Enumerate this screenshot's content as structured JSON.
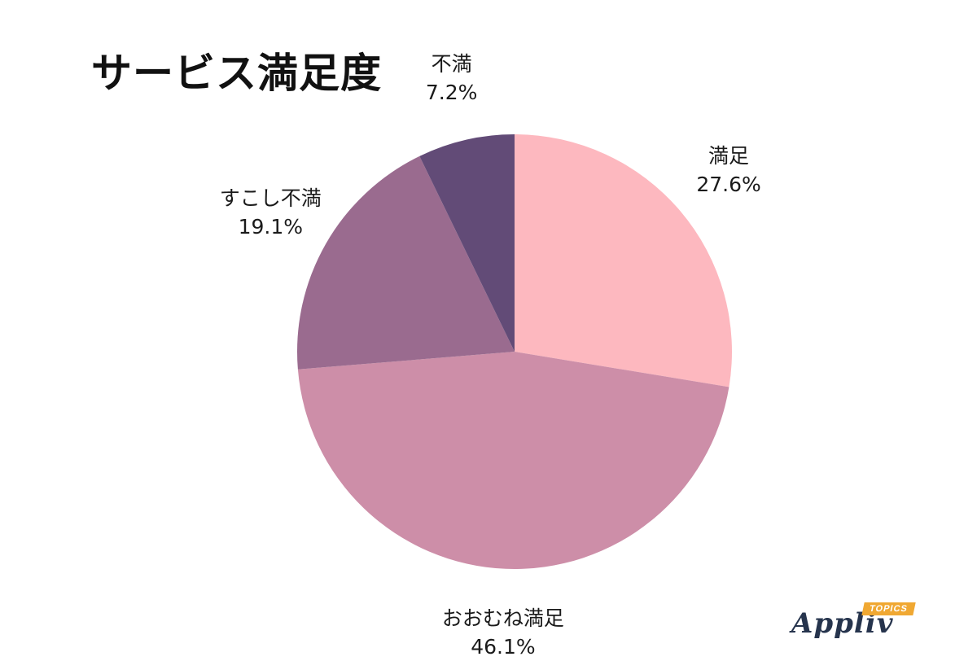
{
  "chart_data": {
    "type": "pie",
    "title": "サービス満足度",
    "slices": [
      {
        "label": "満足",
        "value": 27.6,
        "value_label": "27.6%",
        "color": "#fdb8bf"
      },
      {
        "label": "おおむね満足",
        "value": 46.1,
        "value_label": "46.1%",
        "color": "#cd8ea8"
      },
      {
        "label": "すこし不満",
        "value": 19.1,
        "value_label": "19.1%",
        "color": "#9a6b8f"
      },
      {
        "label": "不満",
        "value": 7.2,
        "value_label": "7.2%",
        "color": "#624b77"
      }
    ],
    "start": "12 o'clock",
    "direction": "clockwise",
    "legend": "none"
  },
  "logo": {
    "word": "Appliv",
    "badge": "TOPICS"
  }
}
